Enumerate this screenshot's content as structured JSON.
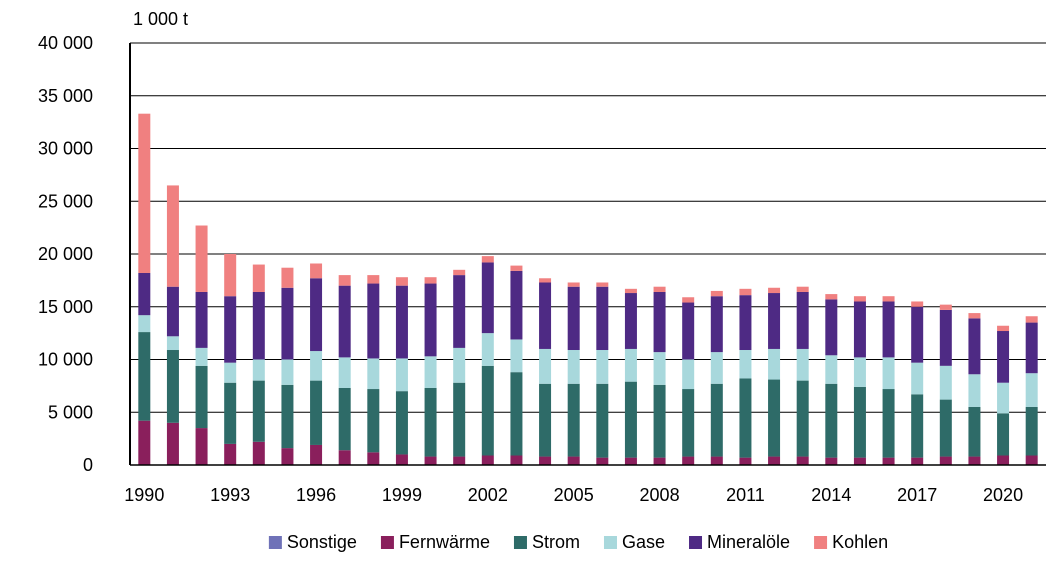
{
  "chart_data": {
    "type": "bar",
    "stacked": true,
    "unit_label": "1 000 t",
    "title": "",
    "xlabel": "",
    "ylabel": "",
    "ylim": [
      0,
      40000
    ],
    "y_ticks": [
      0,
      5000,
      10000,
      15000,
      20000,
      25000,
      30000,
      35000,
      40000
    ],
    "y_tick_labels": [
      "0",
      "5 000",
      "10 000",
      "15 000",
      "20 000",
      "25 000",
      "30 000",
      "35 000",
      "40 000"
    ],
    "x_tick_labels": [
      "1990",
      "1993",
      "1996",
      "1999",
      "2002",
      "2005",
      "2008",
      "2011",
      "2014",
      "2017",
      "2020"
    ],
    "grid": "horizontal",
    "legend_position": "bottom",
    "categories": [
      "1990",
      "1991",
      "1992",
      "1993",
      "1994",
      "1995",
      "1996",
      "1997",
      "1998",
      "1999",
      "2000",
      "2001",
      "2002",
      "2003",
      "2004",
      "2005",
      "2006",
      "2007",
      "2008",
      "2009",
      "2010",
      "2011",
      "2012",
      "2013",
      "2014",
      "2015",
      "2016",
      "2017",
      "2018",
      "2019",
      "2020",
      "2021"
    ],
    "series": [
      {
        "name": "Sonstige",
        "color": "#6f72b8",
        "values": [
          0,
          0,
          0,
          0,
          0,
          0,
          0,
          0,
          0,
          0,
          0,
          0,
          0,
          0,
          0,
          0,
          0,
          0,
          0,
          0,
          0,
          0,
          0,
          0,
          0,
          0,
          0,
          0,
          0,
          0,
          0,
          0
        ]
      },
      {
        "name": "Fernwärme",
        "color": "#8a1f5c",
        "values": [
          4200,
          4000,
          3500,
          2000,
          2200,
          1600,
          1900,
          1400,
          1200,
          1000,
          800,
          800,
          900,
          900,
          800,
          800,
          700,
          700,
          700,
          800,
          800,
          700,
          800,
          800,
          700,
          700,
          700,
          700,
          800,
          800,
          900,
          900
        ]
      },
      {
        "name": "Strom",
        "color": "#2e6b68",
        "values": [
          8400,
          6900,
          5900,
          5800,
          5800,
          6000,
          6100,
          5900,
          6000,
          6000,
          6500,
          7000,
          8500,
          7900,
          6900,
          6900,
          7000,
          7200,
          6900,
          6400,
          6900,
          7500,
          7300,
          7200,
          7000,
          6700,
          6500,
          6000,
          5400,
          4700,
          4000,
          4600
        ]
      },
      {
        "name": "Gase",
        "color": "#a8d8dc",
        "values": [
          1600,
          1300,
          1700,
          1900,
          2000,
          2400,
          2800,
          2900,
          2900,
          3100,
          3000,
          3300,
          3100,
          3100,
          3300,
          3200,
          3200,
          3100,
          3100,
          2800,
          3000,
          2700,
          2900,
          3000,
          2700,
          2800,
          3000,
          3000,
          3200,
          3100,
          2900,
          3200
        ]
      },
      {
        "name": "Mineralöle",
        "color": "#4e2a84",
        "values": [
          4000,
          4700,
          5300,
          6300,
          6400,
          6800,
          6900,
          6800,
          7100,
          6900,
          6900,
          6900,
          6700,
          6500,
          6300,
          6000,
          6000,
          5300,
          5700,
          5400,
          5300,
          5200,
          5300,
          5400,
          5300,
          5300,
          5300,
          5300,
          5300,
          5300,
          4900,
          4800
        ]
      },
      {
        "name": "Kohlen",
        "color": "#f08080",
        "values": [
          15100,
          9600,
          6300,
          4000,
          2600,
          1900,
          1400,
          1000,
          800,
          800,
          600,
          500,
          600,
          500,
          400,
          400,
          400,
          400,
          500,
          500,
          500,
          600,
          500,
          500,
          500,
          500,
          500,
          500,
          500,
          500,
          500,
          600
        ]
      }
    ]
  }
}
